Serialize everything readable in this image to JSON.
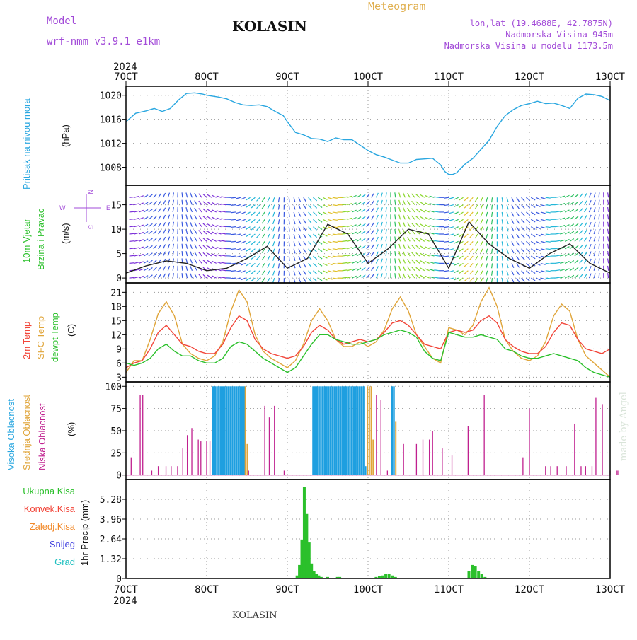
{
  "header": {
    "model_label": "Model",
    "model_name": "wrf-nmm_v3.9.1 e1km",
    "station": "KOLASIN",
    "product": "Meteogram",
    "lonlat": "lon,lat (19.4688E, 42.7875N)",
    "elevation": "Nadmorska Visina 945m",
    "model_elevation": "Nadmorska Visina u modelu 1173.5m",
    "year_top": "2024",
    "year_bottom": "2024",
    "footer_station": "KOLASIN",
    "watermark": "made by Angel"
  },
  "colors": {
    "pressure": "#2aa7e0",
    "t2m": "#f2463a",
    "tsfc": "#e0a53a",
    "dewpt": "#2bc02b",
    "cloud_high": "#1e9fe0",
    "cloud_mid": "#e0a53a",
    "cloud_low": "#c0208f",
    "precip_total": "#2bc02b",
    "precip_conv": "#f2463a",
    "precip_frz": "#f28a2a",
    "snow": "#4444e0",
    "hail": "#20c0c0",
    "label_purple": "#a24bd8",
    "label_gold": "#e0b050"
  },
  "chart_data": [
    {
      "type": "line",
      "title": "",
      "ylabel_left": "Pritisak na nivou mora",
      "ylabel_unit": "(hPa)",
      "x_ticks": [
        "7OCT",
        "8OCT",
        "9OCT",
        "10OCT",
        "11OCT",
        "12OCT",
        "13OCT"
      ],
      "ylim": [
        1005,
        1021.5
      ],
      "y_ticks": [
        1008,
        1012,
        1016,
        1020
      ],
      "grid": true,
      "series": [
        {
          "name": "Pritisak na nivou mora",
          "x": [
            0,
            0.12,
            0.25,
            0.35,
            0.45,
            0.55,
            0.65,
            0.75,
            0.85,
            0.95,
            1.0,
            1.05,
            1.15,
            1.25,
            1.35,
            1.45,
            1.55,
            1.65,
            1.75,
            1.85,
            1.95,
            2.0,
            2.1,
            2.2,
            2.3,
            2.4,
            2.5,
            2.6,
            2.7,
            2.8,
            2.9,
            3.0,
            3.1,
            3.2,
            3.3,
            3.4,
            3.5,
            3.6,
            3.7,
            3.8,
            3.9,
            3.95,
            4.0,
            4.05,
            4.1,
            4.15,
            4.2,
            4.3,
            4.4,
            4.5,
            4.6,
            4.7,
            4.8,
            4.9,
            5.0,
            5.1,
            5.2,
            5.3,
            5.4,
            5.5,
            5.6,
            5.7,
            5.8,
            5.9,
            6.0
          ],
          "values": [
            1015.6,
            1017.0,
            1017.4,
            1017.8,
            1017.3,
            1017.8,
            1019.2,
            1020.3,
            1020.4,
            1020.2,
            1020.0,
            1019.9,
            1019.7,
            1019.4,
            1018.8,
            1018.4,
            1018.3,
            1018.4,
            1018.1,
            1017.3,
            1016.6,
            1015.6,
            1013.8,
            1013.4,
            1012.8,
            1012.7,
            1012.3,
            1012.9,
            1012.6,
            1012.6,
            1011.7,
            1010.8,
            1010.1,
            1009.7,
            1009.2,
            1008.7,
            1008.7,
            1009.3,
            1009.4,
            1009.5,
            1008.4,
            1007.3,
            1006.8,
            1006.8,
            1007.1,
            1007.8,
            1008.5,
            1009.5,
            1011.0,
            1012.5,
            1014.8,
            1016.6,
            1017.6,
            1018.3,
            1018.6,
            1019.0,
            1018.6,
            1018.7,
            1018.3,
            1017.8,
            1019.5,
            1020.2,
            1020.1,
            1019.8,
            1019.1
          ]
        }
      ]
    },
    {
      "type": "scatter",
      "title": "",
      "ylabel_left_a": "10m Vjetar",
      "ylabel_left_b": "Brzina i Pravac",
      "ylabel_unit": "(m/s)",
      "compass": {
        "n": "N",
        "s": "S",
        "e": "E",
        "w": "W"
      },
      "ylim": [
        -1,
        19
      ],
      "y_ticks": [
        0,
        5,
        10,
        15
      ],
      "grid": true,
      "series": [
        {
          "name": "Brzina",
          "x": [
            0,
            0.25,
            0.5,
            0.75,
            1.0,
            1.25,
            1.5,
            1.75,
            2.0,
            2.25,
            2.5,
            2.75,
            3.0,
            3.25,
            3.5,
            3.75,
            4.0,
            4.25,
            4.5,
            4.75,
            5.0,
            5.25,
            5.5,
            5.75,
            6.0
          ],
          "values": [
            1.0,
            2.5,
            3.5,
            3.0,
            1.5,
            2.0,
            4.0,
            6.5,
            2.0,
            4.0,
            11.0,
            9.0,
            3.0,
            6.0,
            10.0,
            9.0,
            2.0,
            11.5,
            7.0,
            4.0,
            2.0,
            5.0,
            7.0,
            3.0,
            1.0
          ]
        }
      ]
    },
    {
      "type": "line",
      "title": "",
      "ylabel_left_a": "2m Temp",
      "ylabel_left_b": "SFC Temp",
      "ylabel_left_c": "dewpt Temp",
      "ylabel_unit": "(C)",
      "ylim": [
        2,
        23
      ],
      "y_ticks": [
        3,
        6,
        9,
        12,
        15,
        18,
        21
      ],
      "grid": true,
      "x": [
        0,
        0.1,
        0.2,
        0.3,
        0.4,
        0.5,
        0.6,
        0.7,
        0.8,
        0.9,
        1.0,
        1.1,
        1.2,
        1.3,
        1.4,
        1.5,
        1.6,
        1.7,
        1.8,
        1.9,
        2.0,
        2.1,
        2.2,
        2.3,
        2.4,
        2.5,
        2.6,
        2.7,
        2.8,
        2.9,
        3.0,
        3.1,
        3.2,
        3.3,
        3.4,
        3.5,
        3.6,
        3.7,
        3.8,
        3.9,
        4.0,
        4.1,
        4.2,
        4.3,
        4.4,
        4.5,
        4.6,
        4.7,
        4.8,
        4.9,
        5.0,
        5.1,
        5.2,
        5.3,
        5.4,
        5.5,
        5.6,
        5.7,
        5.8,
        5.9,
        6.0
      ],
      "series": [
        {
          "name": "2m Temp",
          "values": [
            5.0,
            6.0,
            6.5,
            9.0,
            12.5,
            14.0,
            12.0,
            10.0,
            9.5,
            8.5,
            8.0,
            8.0,
            10.0,
            13.5,
            16.0,
            15.0,
            11.0,
            9.0,
            8.0,
            7.5,
            7.0,
            7.5,
            9.5,
            12.5,
            14.0,
            13.0,
            11.0,
            10.0,
            10.5,
            11.0,
            10.5,
            11.0,
            12.5,
            14.5,
            15.0,
            14.0,
            12.0,
            10.0,
            9.5,
            9.0,
            12.5,
            13.0,
            12.5,
            13.0,
            15.0,
            16.0,
            14.5,
            11.0,
            9.5,
            8.5,
            8.0,
            8.0,
            9.5,
            12.5,
            14.5,
            14.0,
            11.0,
            9.0,
            8.5,
            8.0,
            9.0
          ]
        },
        {
          "name": "SFC Temp",
          "values": [
            4.0,
            6.5,
            6.5,
            11.0,
            16.5,
            19.0,
            16.0,
            10.0,
            8.0,
            7.0,
            6.5,
            7.5,
            10.5,
            17.0,
            21.5,
            19.0,
            12.0,
            8.5,
            7.0,
            6.0,
            5.0,
            6.5,
            10.0,
            15.0,
            17.5,
            15.0,
            11.0,
            9.5,
            9.5,
            10.5,
            9.5,
            10.5,
            13.0,
            17.5,
            20.0,
            17.0,
            12.0,
            9.5,
            7.0,
            6.0,
            13.5,
            13.0,
            12.0,
            14.0,
            19.0,
            22.0,
            18.0,
            11.0,
            8.5,
            7.0,
            6.5,
            7.5,
            10.5,
            16.0,
            18.5,
            17.0,
            11.0,
            7.5,
            6.0,
            4.5,
            3.0
          ]
        },
        {
          "name": "dewpt Temp",
          "values": [
            6.0,
            5.5,
            6.0,
            7.0,
            9.0,
            10.0,
            8.5,
            7.5,
            7.5,
            6.5,
            6.0,
            6.0,
            7.0,
            9.5,
            10.5,
            10.0,
            8.5,
            7.0,
            6.0,
            5.0,
            4.0,
            5.0,
            7.5,
            10.0,
            12.0,
            12.0,
            11.0,
            10.5,
            10.0,
            10.0,
            10.5,
            11.0,
            12.0,
            12.5,
            13.0,
            12.5,
            11.5,
            8.5,
            7.0,
            6.5,
            12.5,
            12.0,
            11.5,
            11.5,
            12.0,
            11.5,
            11.0,
            9.0,
            8.5,
            7.5,
            7.0,
            7.0,
            7.5,
            8.0,
            7.5,
            7.0,
            6.5,
            5.0,
            4.0,
            3.5,
            3.0
          ]
        }
      ]
    },
    {
      "type": "bar",
      "title": "",
      "ylabel_left_a": "Visoka Oblacnost",
      "ylabel_left_b": "Srednja Oblacnost",
      "ylabel_left_c": "Niska Oblacnost",
      "ylabel_unit": "(%)",
      "ylim": [
        -5,
        105
      ],
      "y_ticks": [
        0,
        25,
        50,
        75,
        100
      ],
      "grid": true,
      "series": [
        {
          "name": "Visoka Oblacnost",
          "x": [
            1.35,
            1.38,
            1.41,
            1.44,
            1.47,
            1.5,
            1.53,
            1.56,
            1.59,
            1.62,
            1.65,
            1.68,
            1.71,
            1.74,
            1.77,
            1.8,
            1.83,
            2.9,
            2.93,
            2.96,
            2.99,
            3.02,
            3.05,
            3.08,
            3.11,
            3.14,
            3.17,
            3.2,
            3.23,
            3.26,
            3.29,
            3.32,
            3.35,
            3.38,
            3.41,
            3.44,
            3.47,
            3.5,
            3.53,
            3.56,
            3.59,
            3.62,
            3.65,
            3.68,
            3.71,
            4.12,
            4.15
          ],
          "values": [
            100,
            100,
            100,
            100,
            100,
            100,
            100,
            100,
            100,
            100,
            100,
            100,
            100,
            100,
            100,
            100,
            100,
            100,
            100,
            100,
            100,
            100,
            100,
            100,
            100,
            100,
            100,
            100,
            100,
            100,
            100,
            100,
            100,
            100,
            100,
            100,
            100,
            100,
            100,
            100,
            100,
            100,
            100,
            100,
            10,
            100,
            100
          ]
        },
        {
          "name": "Srednja Oblacnost",
          "x": [
            1.85,
            1.88,
            3.74,
            3.77,
            3.8,
            3.83,
            4.18
          ],
          "values": [
            100,
            35,
            100,
            100,
            100,
            40,
            60
          ]
        },
        {
          "name": "Niska Oblacnost",
          "x": [
            0.08,
            0.22,
            0.26,
            0.4,
            0.5,
            0.62,
            0.7,
            0.8,
            0.88,
            0.95,
            1.02,
            1.12,
            1.16,
            1.25,
            1.3,
            1.9,
            2.15,
            2.22,
            2.3,
            2.45,
            3.88,
            3.95,
            4.05,
            4.3,
            4.5,
            4.6,
            4.7,
            4.75,
            4.9,
            5.05,
            5.3,
            5.55,
            6.15,
            6.25,
            6.5,
            6.58,
            6.68,
            6.82,
            6.95,
            7.05,
            7.12,
            7.22,
            7.28,
            7.38,
            7.5,
            7.6,
            7.62
          ],
          "values": [
            20,
            90,
            90,
            5,
            10,
            10,
            10,
            10,
            30,
            45,
            53,
            40,
            38,
            38,
            38,
            5,
            78,
            65,
            78,
            5,
            90,
            85,
            5,
            35,
            35,
            40,
            40,
            50,
            30,
            22,
            55,
            90,
            20,
            75,
            10,
            10,
            10,
            10,
            58,
            10,
            10,
            10,
            87,
            80,
            5,
            5,
            5
          ]
        }
      ]
    },
    {
      "type": "bar",
      "title": "",
      "ylabel_unit": "1hr Precip (mm)",
      "legend": [
        "Ukupna Kisa",
        "Konvek.Kisa",
        "Zaledj.Kisa",
        "Snijeg",
        "Grad"
      ],
      "ylim": [
        0,
        6.6
      ],
      "y_ticks": [
        0,
        1.32,
        2.64,
        3.96,
        5.28
      ],
      "grid": true,
      "series": [
        {
          "name": "Ukupna Kisa",
          "x": [
            2.12,
            2.15,
            2.18,
            2.21,
            2.24,
            2.27,
            2.3,
            2.33,
            2.36,
            2.39,
            2.42,
            2.5,
            2.62,
            2.65,
            3.1,
            3.14,
            3.18,
            3.22,
            3.26,
            3.3,
            3.34,
            4.25,
            4.29,
            4.33,
            4.37,
            4.41,
            4.45
          ],
          "values": [
            0.2,
            0.9,
            2.6,
            6.1,
            4.3,
            2.4,
            1.0,
            0.5,
            0.3,
            0.2,
            0.1,
            0.1,
            0.1,
            0.1,
            0.1,
            0.15,
            0.2,
            0.3,
            0.3,
            0.2,
            0.1,
            0.5,
            0.9,
            0.8,
            0.5,
            0.3,
            0.1
          ]
        }
      ]
    }
  ]
}
